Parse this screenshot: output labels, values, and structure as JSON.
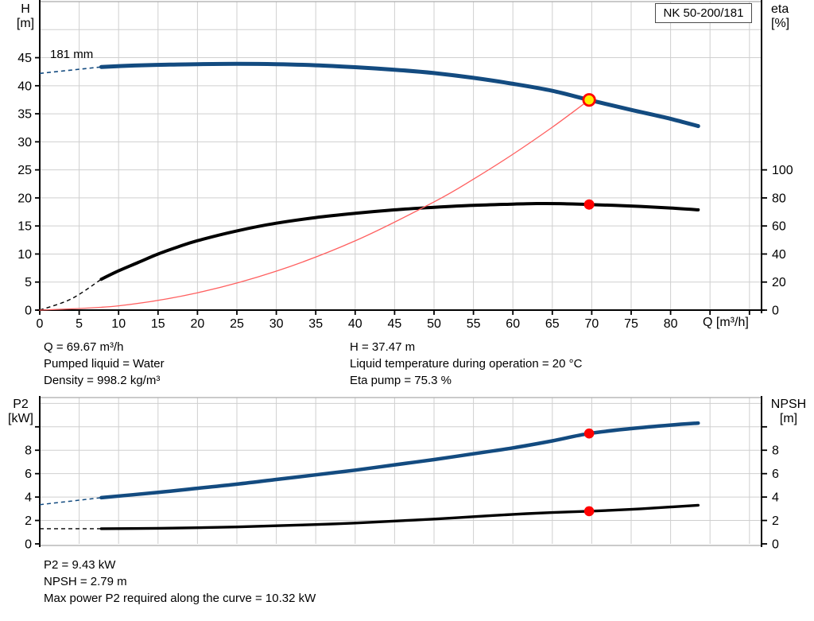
{
  "header": {
    "model_box": "NK 50-200/181"
  },
  "top_chart": {
    "left_axis": {
      "line1": "H",
      "line2": "[m]"
    },
    "right_axis": {
      "line1": "eta",
      "line2": "[%]"
    },
    "x_axis_label": "Q [m³/h]",
    "curve_label": "181 mm"
  },
  "bottom_chart": {
    "left_axis": {
      "line1": "P2",
      "line2": "[kW]"
    },
    "right_axis": {
      "line1": "NPSH",
      "line2": "[m]"
    }
  },
  "top_info": {
    "col1": [
      "Q = 69.67 m³/h",
      "Pumped liquid = Water",
      "Density = 998.2 kg/m³"
    ],
    "col2": [
      "H = 37.47 m",
      "Liquid temperature during operation = 20 °C",
      "Eta pump = 75.3 %"
    ]
  },
  "bottom_info": [
    "P2 = 9.43 kW",
    "NPSH = 2.79 m",
    "Max power P2 required along the curve = 10.32 kW"
  ],
  "colors": {
    "curve_blue": "#134b80",
    "curve_black": "#000000",
    "system_curve_red": "#ff6060",
    "marker_red": "#ff0000",
    "duty_yellow": "#ffee00",
    "grid": "#cfcfcf",
    "gray_border": "#aaaaaa",
    "axis": "#000000"
  },
  "chart_data": [
    {
      "type": "line",
      "title": "NK 50-200/181",
      "xlabel": "Q [m³/h]",
      "ylabel_left": "H [m]",
      "ylabel_right": "eta [%]",
      "x_range": [
        0,
        91.5
      ],
      "y_left_range": [
        0,
        55
      ],
      "right_axis_scale": 0.25,
      "grid": true,
      "grid_y_values": [
        5,
        10,
        15,
        20,
        25,
        30,
        35,
        40,
        45,
        50,
        55
      ],
      "grid_x_step": 5,
      "x_ticks_labeled": [
        0,
        5,
        10,
        15,
        20,
        25,
        30,
        35,
        40,
        45,
        50,
        55,
        60,
        65,
        70,
        75,
        80
      ],
      "x_ticks_bare": [
        85,
        90
      ],
      "y_left_ticks_labeled": [
        0,
        5,
        10,
        15,
        20,
        25,
        30,
        35,
        40,
        45
      ],
      "y_left_ticks_bare": [],
      "y_right_ticks_labeled": [
        0,
        20,
        40,
        60,
        80,
        100
      ],
      "y_right_ticks_bare": [],
      "series": [
        {
          "name": "head-181mm",
          "label": "181 mm",
          "axis": "left",
          "color": "#134b80",
          "width": 5,
          "dash_width": 1.6,
          "dash_points": [
            [
              0,
              42.2
            ],
            [
              7.8,
              43.35
            ]
          ],
          "points": [
            [
              7.8,
              43.35
            ],
            [
              12,
              43.6
            ],
            [
              16,
              43.75
            ],
            [
              20,
              43.85
            ],
            [
              25,
              43.9
            ],
            [
              30,
              43.85
            ],
            [
              35,
              43.65
            ],
            [
              40,
              43.3
            ],
            [
              45,
              42.85
            ],
            [
              50,
              42.25
            ],
            [
              55,
              41.4
            ],
            [
              60,
              40.35
            ],
            [
              65,
              39.1
            ],
            [
              69.67,
              37.47
            ],
            [
              75,
              35.7
            ],
            [
              80,
              34.1
            ],
            [
              83.5,
              32.8
            ]
          ]
        },
        {
          "name": "efficiency",
          "label": "eta",
          "axis": "right",
          "color": "#000000",
          "width": 4,
          "dash_width": 1.4,
          "dash_points": [
            [
              0,
              0
            ],
            [
              4,
              8
            ],
            [
              7.8,
              22
            ]
          ],
          "points": [
            [
              7.8,
              22
            ],
            [
              10,
              28
            ],
            [
              12.5,
              34
            ],
            [
              15,
              40
            ],
            [
              17.5,
              45
            ],
            [
              20,
              49.5
            ],
            [
              25,
              56.5
            ],
            [
              30,
              62
            ],
            [
              35,
              66
            ],
            [
              40,
              69
            ],
            [
              45,
              71.5
            ],
            [
              50,
              73.3
            ],
            [
              55,
              74.7
            ],
            [
              60,
              75.6
            ],
            [
              63,
              76
            ],
            [
              66,
              75.9
            ],
            [
              69.67,
              75.3
            ],
            [
              75,
              74.2
            ],
            [
              80,
              72.8
            ],
            [
              83.5,
              71.5
            ]
          ]
        },
        {
          "name": "system-curve",
          "label": "system curve",
          "axis": "left",
          "color": "#ff6060",
          "width": 1.3,
          "dash_width": 0,
          "dash_points": [],
          "points": [
            [
              0,
              0
            ],
            [
              10,
              0.77
            ],
            [
              20,
              3.09
            ],
            [
              30,
              6.95
            ],
            [
              40,
              12.35
            ],
            [
              50,
              19.29
            ],
            [
              55,
              23.35
            ],
            [
              60,
              27.79
            ],
            [
              65,
              32.61
            ],
            [
              69.67,
              37.47
            ]
          ]
        }
      ],
      "markers": [
        {
          "name": "duty-point",
          "axis": "left",
          "x": 69.67,
          "y": 37.47,
          "fill": "#ffee00",
          "stroke": "#ff0000",
          "r": 7.2,
          "stroke_width": 2.8
        },
        {
          "name": "eta-point",
          "axis": "right",
          "x": 69.67,
          "y": 75.3,
          "fill": "#ff0000",
          "stroke": "none",
          "r": 6.5,
          "stroke_width": 0
        }
      ]
    },
    {
      "type": "line",
      "title": "P2 / NPSH",
      "xlabel": "",
      "ylabel_left": "P2 [kW]",
      "ylabel_right": "NPSH [m]",
      "x_range": [
        0,
        91.5
      ],
      "y_left_range": [
        0,
        12.5
      ],
      "right_axis_scale": 1,
      "grid": true,
      "grid_y_values": [
        2,
        4,
        6,
        8,
        10,
        12
      ],
      "grid_x_step": 5,
      "x_ticks_labeled": [],
      "x_ticks_bare": [],
      "y_left_ticks_labeled": [
        0,
        2,
        4,
        6,
        8
      ],
      "y_left_ticks_bare": [
        10
      ],
      "y_right_ticks_labeled": [
        0,
        2,
        4,
        6,
        8
      ],
      "y_right_ticks_bare": [
        10
      ],
      "series": [
        {
          "name": "power-p2",
          "label": "P2",
          "axis": "left",
          "color": "#134b80",
          "width": 4.5,
          "dash_width": 1.5,
          "dash_points": [
            [
              0,
              3.35
            ],
            [
              7.8,
              3.95
            ]
          ],
          "points": [
            [
              7.8,
              3.95
            ],
            [
              15,
              4.4
            ],
            [
              20,
              4.75
            ],
            [
              25,
              5.1
            ],
            [
              30,
              5.5
            ],
            [
              35,
              5.9
            ],
            [
              40,
              6.3
            ],
            [
              45,
              6.75
            ],
            [
              50,
              7.2
            ],
            [
              55,
              7.7
            ],
            [
              60,
              8.2
            ],
            [
              65,
              8.8
            ],
            [
              69.67,
              9.43
            ],
            [
              75,
              9.85
            ],
            [
              80,
              10.15
            ],
            [
              83.5,
              10.32
            ]
          ]
        },
        {
          "name": "npsh",
          "label": "NPSH",
          "axis": "right",
          "color": "#000000",
          "width": 3.4,
          "dash_width": 1.4,
          "dash_points": [
            [
              0,
              1.3
            ],
            [
              7.8,
              1.3
            ]
          ],
          "points": [
            [
              7.8,
              1.3
            ],
            [
              15,
              1.33
            ],
            [
              20,
              1.38
            ],
            [
              25,
              1.45
            ],
            [
              30,
              1.55
            ],
            [
              35,
              1.65
            ],
            [
              40,
              1.78
            ],
            [
              45,
              1.95
            ],
            [
              50,
              2.12
            ],
            [
              55,
              2.32
            ],
            [
              60,
              2.52
            ],
            [
              65,
              2.68
            ],
            [
              69.67,
              2.79
            ],
            [
              75,
              2.95
            ],
            [
              80,
              3.15
            ],
            [
              83.5,
              3.3
            ]
          ]
        }
      ],
      "markers": [
        {
          "name": "p2-point",
          "axis": "left",
          "x": 69.67,
          "y": 9.43,
          "fill": "#ff0000",
          "stroke": "none",
          "r": 6.3,
          "stroke_width": 0
        },
        {
          "name": "npsh-point",
          "axis": "right",
          "x": 69.67,
          "y": 2.79,
          "fill": "#ff0000",
          "stroke": "none",
          "r": 6.3,
          "stroke_width": 0
        }
      ]
    }
  ]
}
